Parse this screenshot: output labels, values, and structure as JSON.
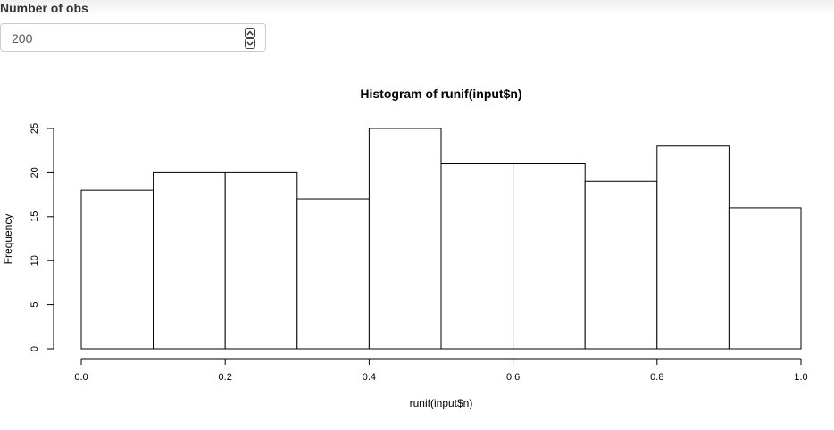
{
  "form": {
    "label": "Number of obs",
    "value": "200"
  },
  "chart_data": {
    "type": "bar",
    "title": "Histogram of runif(input$n)",
    "xlabel": "runif(input$n)",
    "ylabel": "Frequency",
    "bins": [
      {
        "x0": 0.0,
        "x1": 0.1,
        "count": 18
      },
      {
        "x0": 0.1,
        "x1": 0.2,
        "count": 20
      },
      {
        "x0": 0.2,
        "x1": 0.3,
        "count": 20
      },
      {
        "x0": 0.3,
        "x1": 0.4,
        "count": 17
      },
      {
        "x0": 0.4,
        "x1": 0.5,
        "count": 25
      },
      {
        "x0": 0.5,
        "x1": 0.6,
        "count": 21
      },
      {
        "x0": 0.6,
        "x1": 0.7,
        "count": 21
      },
      {
        "x0": 0.7,
        "x1": 0.8,
        "count": 19
      },
      {
        "x0": 0.8,
        "x1": 0.9,
        "count": 23
      },
      {
        "x0": 0.9,
        "x1": 1.0,
        "count": 16
      }
    ],
    "xlim": [
      0,
      1
    ],
    "ylim": [
      0,
      25
    ],
    "xticks": [
      "0.0",
      "0.2",
      "0.4",
      "0.6",
      "0.8",
      "1.0"
    ],
    "yticks": [
      "0",
      "5",
      "10",
      "15",
      "20",
      "25"
    ],
    "grid": false
  }
}
